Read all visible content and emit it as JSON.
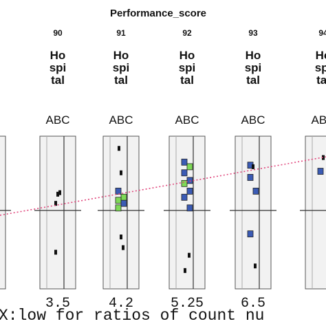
{
  "chart_data": {
    "type": "scatter",
    "title": "Performance_score",
    "panels": [
      {
        "id": "89",
        "label": "Ho spi tal",
        "group": "ABC",
        "tick": "",
        "marks": [
          {
            "color": "#111111",
            "level": 0.62
          }
        ]
      },
      {
        "id": "90",
        "label": "Ho spi tal",
        "group": "ABC",
        "tick": "3.5",
        "marks": [
          {
            "color": "#111111",
            "level": 0.56
          },
          {
            "color": "#111111",
            "level": 0.62
          },
          {
            "color": "#111111",
            "level": 0.63
          },
          {
            "color": "#111111",
            "level": 0.24
          }
        ]
      },
      {
        "id": "91",
        "label": "Ho spi tal",
        "group": "ABC",
        "tick": "4.2",
        "marks": [
          {
            "color": "#111111",
            "level": 0.92
          },
          {
            "color": "#111111",
            "level": 0.76
          },
          {
            "color": "#3b5bb5",
            "level": 0.64
          },
          {
            "color": "#7ed957",
            "level": 0.6
          },
          {
            "color": "#7ed957",
            "level": 0.58
          },
          {
            "color": "#3b5bb5",
            "level": 0.56
          },
          {
            "color": "#7ed957",
            "level": 0.53
          },
          {
            "color": "#111111",
            "level": 0.34
          },
          {
            "color": "#111111",
            "level": 0.27
          }
        ]
      },
      {
        "id": "92",
        "label": "Ho spi tal",
        "group": "ABC",
        "tick": "5.25",
        "marks": [
          {
            "color": "#3b5bb5",
            "level": 0.83
          },
          {
            "color": "#7ed957",
            "level": 0.8
          },
          {
            "color": "#3b5bb5",
            "level": 0.76
          },
          {
            "color": "#3b5bb5",
            "level": 0.71
          },
          {
            "color": "#7ed957",
            "level": 0.69
          },
          {
            "color": "#3b5bb5",
            "level": 0.64
          },
          {
            "color": "#3b5bb5",
            "level": 0.6
          },
          {
            "color": "#3b5bb5",
            "level": 0.53
          },
          {
            "color": "#111111",
            "level": 0.22
          },
          {
            "color": "#111111",
            "level": 0.12
          }
        ]
      },
      {
        "id": "93",
        "label": "Ho spi tal",
        "group": "ABC",
        "tick": "6.5",
        "marks": [
          {
            "color": "#3b5bb5",
            "level": 0.81
          },
          {
            "color": "#111111",
            "level": 0.8
          },
          {
            "color": "#3b5bb5",
            "level": 0.73
          },
          {
            "color": "#3b5bb5",
            "level": 0.64
          },
          {
            "color": "#3b5bb5",
            "level": 0.36
          },
          {
            "color": "#111111",
            "level": 0.15
          }
        ]
      },
      {
        "id": "94",
        "label": "Ho spi tal",
        "group": "ABC",
        "tick": "",
        "marks": [
          {
            "color": "#3b5bb5",
            "level": 0.77
          },
          {
            "color": "#111111",
            "level": 0.86
          }
        ]
      }
    ],
    "xlabel": "X:low for ratios of count nu",
    "trend_line": {
      "color": "#e0457b",
      "style": "dotted"
    }
  }
}
